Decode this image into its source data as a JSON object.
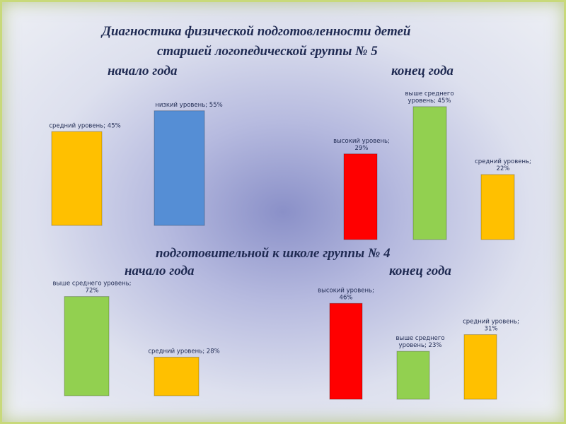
{
  "title": {
    "line1": "Диагностика  физической подготовленности детей",
    "line2": "старшей логопедической группы № 5",
    "line3_start": "начало года",
    "line3_end": "конец года",
    "line4": "подготовительной к школе  группы № 4",
    "line5_start": "начало года",
    "line5_end": "конец года"
  },
  "colors": {
    "orange": "#FFC000",
    "blue": "#558ED5",
    "red": "#FF0000",
    "green": "#92D050"
  },
  "chart_data": [
    {
      "type": "bar",
      "title": "",
      "categories": [
        "средний уровень",
        "низкий уровень"
      ],
      "values": [
        45,
        55
      ],
      "colors": [
        "#FFC000",
        "#558ED5"
      ],
      "labels": [
        [
          "средний уровень; 45%"
        ],
        [
          "низкий уровень; 55%"
        ]
      ]
    },
    {
      "type": "bar",
      "title": "",
      "categories": [
        "высокий уровень",
        "выше среднего уровень",
        "средний уровень"
      ],
      "values": [
        29,
        45,
        22
      ],
      "colors": [
        "#FF0000",
        "#92D050",
        "#FFC000"
      ],
      "labels": [
        [
          "высокий уровень;",
          "29%"
        ],
        [
          "выше среднего",
          "уровень; 45%"
        ],
        [
          "средний уровень;",
          "22%"
        ]
      ]
    },
    {
      "type": "bar",
      "title": "",
      "categories": [
        "выше среднего уровень",
        "средний уровень"
      ],
      "values": [
        72,
        28
      ],
      "colors": [
        "#92D050",
        "#FFC000"
      ],
      "labels": [
        [
          "выше среднего уровень;",
          "72%"
        ],
        [
          "средний уровень; 28%"
        ]
      ]
    },
    {
      "type": "bar",
      "title": "",
      "categories": [
        "высокий уровень",
        "выше среднего уровень",
        "средний уровень"
      ],
      "values": [
        46,
        23,
        31
      ],
      "colors": [
        "#FF0000",
        "#92D050",
        "#FFC000"
      ],
      "labels": [
        [
          "высокий уровень;",
          "46%"
        ],
        [
          "выше среднего",
          "уровень; 23%"
        ],
        [
          "средний уровень;",
          "31%"
        ]
      ]
    }
  ]
}
